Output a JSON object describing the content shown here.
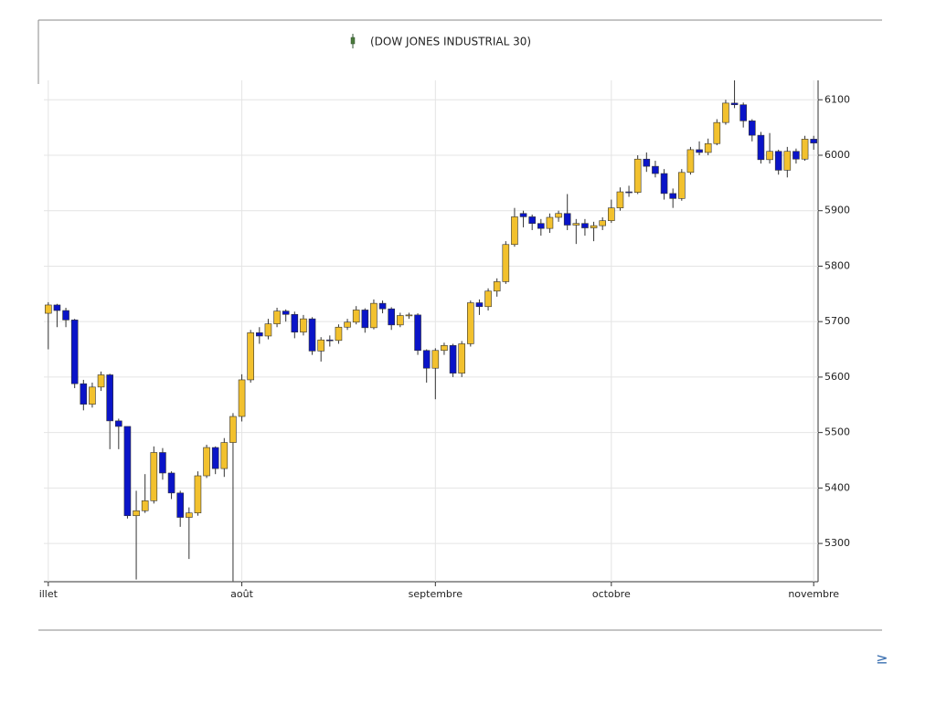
{
  "chart_data": {
    "type": "candlestick",
    "title": "(DOW JONES INDUSTRIAL 30)",
    "categories": [
      "illet",
      null,
      null,
      null,
      null,
      null,
      null,
      null,
      null,
      null,
      null,
      null,
      null,
      null,
      null,
      null,
      null,
      null,
      null,
      null,
      null,
      null,
      "août",
      null,
      null,
      null,
      null,
      null,
      null,
      null,
      null,
      null,
      null,
      null,
      null,
      null,
      null,
      null,
      null,
      null,
      null,
      null,
      null,
      null,
      "septembre",
      null,
      null,
      null,
      null,
      null,
      null,
      null,
      null,
      null,
      null,
      null,
      null,
      null,
      null,
      null,
      null,
      null,
      null,
      null,
      "octobre",
      null,
      null,
      null,
      null,
      null,
      null,
      null,
      null,
      null,
      null,
      null,
      null,
      null,
      null,
      null,
      null,
      null,
      null,
      null,
      null,
      null,
      null,
      "novembre"
    ],
    "open": [
      5715,
      5730,
      5720,
      5703,
      5588,
      5551,
      5582,
      5604,
      5521,
      5511,
      5350,
      5359,
      5377,
      5464,
      5427,
      5391,
      5347,
      5355,
      5422,
      5473,
      5435,
      5482,
      5529,
      5595,
      5680,
      5674,
      5696,
      5719,
      5713,
      5681,
      5705,
      5647,
      5667,
      5666,
      5690,
      5699,
      5721,
      5689,
      5733,
      5723,
      5694,
      5711,
      5712,
      5648,
      5616,
      5648,
      5657,
      5607,
      5660,
      5734,
      5727,
      5755,
      5772,
      5839,
      5895,
      5889,
      5877,
      5868,
      5888,
      5895,
      5874,
      5877,
      5869,
      5873,
      5882,
      5905,
      5934,
      5933,
      5993,
      5980,
      5967,
      5931,
      5922,
      5969,
      6010,
      6005,
      6021,
      6059,
      6094,
      6091,
      6062,
      6036,
      5992,
      6007,
      5973,
      6007,
      5993,
      6029
    ],
    "high": [
      5735,
      5732,
      5725,
      5705,
      5595,
      5590,
      5610,
      5606,
      5525,
      5511,
      5395,
      5425,
      5475,
      5472,
      5430,
      5395,
      5365,
      5430,
      5478,
      5475,
      5490,
      5535,
      5605,
      5685,
      5690,
      5705,
      5725,
      5722,
      5718,
      5712,
      5708,
      5672,
      5675,
      5695,
      5705,
      5728,
      5724,
      5740,
      5738,
      5726,
      5716,
      5716,
      5715,
      5650,
      5652,
      5662,
      5660,
      5665,
      5738,
      5740,
      5760,
      5778,
      5845,
      5905,
      5900,
      5893,
      5885,
      5895,
      5900,
      5930,
      5885,
      5885,
      5880,
      5888,
      5920,
      5942,
      5945,
      6000,
      6005,
      5990,
      5975,
      5940,
      5975,
      6015,
      6025,
      6030,
      6065,
      6100,
      6135,
      6095,
      6065,
      6042,
      6040,
      6010,
      6015,
      6012,
      6035,
      6035
    ],
    "low": [
      5650,
      5690,
      5690,
      5580,
      5540,
      5545,
      5575,
      5470,
      5470,
      5345,
      5235,
      5355,
      5372,
      5415,
      5380,
      5330,
      5272,
      5350,
      5418,
      5425,
      5420,
      5232,
      5520,
      5590,
      5660,
      5668,
      5690,
      5700,
      5670,
      5675,
      5640,
      5628,
      5655,
      5660,
      5685,
      5695,
      5680,
      5686,
      5715,
      5685,
      5690,
      5705,
      5640,
      5590,
      5560,
      5640,
      5600,
      5600,
      5655,
      5712,
      5720,
      5745,
      5768,
      5835,
      5870,
      5865,
      5855,
      5860,
      5880,
      5865,
      5840,
      5855,
      5845,
      5865,
      5878,
      5900,
      5925,
      5930,
      5970,
      5960,
      5920,
      5905,
      5918,
      5965,
      6000,
      6000,
      6018,
      6055,
      6085,
      6050,
      6025,
      5985,
      5985,
      5965,
      5960,
      5985,
      5990,
      6010
    ],
    "close": [
      5730,
      5720,
      5703,
      5588,
      5551,
      5582,
      5604,
      5521,
      5511,
      5350,
      5359,
      5377,
      5464,
      5427,
      5391,
      5347,
      5355,
      5422,
      5473,
      5435,
      5482,
      5529,
      5595,
      5680,
      5674,
      5696,
      5719,
      5713,
      5681,
      5705,
      5647,
      5667,
      5666,
      5690,
      5699,
      5721,
      5689,
      5733,
      5723,
      5694,
      5711,
      5712,
      5648,
      5616,
      5648,
      5657,
      5607,
      5660,
      5734,
      5727,
      5755,
      5772,
      5839,
      5889,
      5889,
      5877,
      5868,
      5888,
      5895,
      5874,
      5877,
      5869,
      5873,
      5882,
      5905,
      5934,
      5933,
      5993,
      5980,
      5967,
      5931,
      5922,
      5969,
      6010,
      6005,
      6021,
      6059,
      6094,
      6091,
      6062,
      6036,
      5992,
      6007,
      5973,
      6007,
      5993,
      6029,
      6022
    ],
    "up_color": "#f2c12e",
    "down_color": "#0a14c8",
    "ylim": [
      5231,
      6135
    ],
    "yticks": [
      5300,
      5400,
      5500,
      5600,
      5700,
      5800,
      5900,
      6000,
      6100
    ],
    "grid": true
  },
  "footer": {
    "link": "≥"
  }
}
